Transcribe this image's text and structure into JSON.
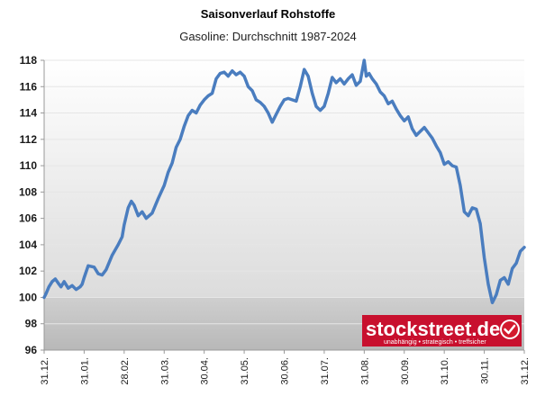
{
  "title": "Saisonverlauf Rohstoffe",
  "subtitle": "Gasoline: Durchschnitt 1987-2024",
  "logo": {
    "name": "stockstreet.de",
    "tagline": "unabhängig • strategisch • treffsicher",
    "color": "#c8102e"
  },
  "chart_data": {
    "type": "line",
    "title": "Saisonverlauf Rohstoffe",
    "subtitle": "Gasoline: Durchschnitt 1987-2024",
    "xlabel": "",
    "ylabel": "",
    "ylim": [
      96,
      118
    ],
    "yticks": [
      96,
      98,
      100,
      102,
      104,
      106,
      108,
      110,
      112,
      114,
      116,
      118
    ],
    "xtick_labels": [
      "31.12.",
      "31.01.",
      "28.02.",
      "31.03.",
      "30.04.",
      "31.05.",
      "30.06.",
      "31.07.",
      "31.08.",
      "30.09.",
      "31.10.",
      "30.11.",
      "31.12."
    ],
    "grid": true,
    "legend": "none",
    "series": [
      {
        "color": "#4a7dbf",
        "x": [
          0,
          0.05,
          0.12,
          0.2,
          0.28,
          0.35,
          0.42,
          0.5,
          0.6,
          0.7,
          0.8,
          0.9,
          0.95,
          1.0,
          1.1,
          1.25,
          1.35,
          1.45,
          1.55,
          1.7,
          1.85,
          1.95,
          2.0,
          2.1,
          2.18,
          2.25,
          2.35,
          2.45,
          2.55,
          2.7,
          2.85,
          3.0,
          3.1,
          3.2,
          3.3,
          3.4,
          3.5,
          3.6,
          3.7,
          3.8,
          3.9,
          4.0,
          4.1,
          4.2,
          4.3,
          4.4,
          4.5,
          4.6,
          4.7,
          4.8,
          4.9,
          5.0,
          5.1,
          5.2,
          5.3,
          5.4,
          5.5,
          5.6,
          5.7,
          5.8,
          5.9,
          6.0,
          6.1,
          6.2,
          6.3,
          6.4,
          6.5,
          6.6,
          6.7,
          6.8,
          6.9,
          7.0,
          7.1,
          7.2,
          7.3,
          7.4,
          7.5,
          7.6,
          7.7,
          7.8,
          7.9,
          8.0,
          8.05,
          8.12,
          8.2,
          8.3,
          8.4,
          8.5,
          8.6,
          8.7,
          8.8,
          8.9,
          9.0,
          9.1,
          9.2,
          9.3,
          9.4,
          9.5,
          9.6,
          9.7,
          9.8,
          9.9,
          10.0,
          10.1,
          10.2,
          10.3,
          10.4,
          10.5,
          10.6,
          10.7,
          10.8,
          10.9,
          11.0,
          11.1,
          11.2,
          11.3,
          11.4,
          11.5,
          11.6,
          11.7,
          11.8,
          11.9,
          12.0
        ],
        "y": [
          100.0,
          100.3,
          100.8,
          101.2,
          101.4,
          101.1,
          100.8,
          101.2,
          100.7,
          100.9,
          100.6,
          100.8,
          101.0,
          101.5,
          102.4,
          102.3,
          101.8,
          101.7,
          102.1,
          103.2,
          104.0,
          104.6,
          105.5,
          106.8,
          107.3,
          107.0,
          106.2,
          106.5,
          106.0,
          106.4,
          107.5,
          108.5,
          109.5,
          110.2,
          111.4,
          112.0,
          113.0,
          113.8,
          114.2,
          114.0,
          114.6,
          115.0,
          115.3,
          115.5,
          116.6,
          117.0,
          117.1,
          116.8,
          117.2,
          116.9,
          117.1,
          116.8,
          116.0,
          115.7,
          115.0,
          114.8,
          114.5,
          114.0,
          113.3,
          113.9,
          114.5,
          115.0,
          115.1,
          115.0,
          114.9,
          116.0,
          117.3,
          116.8,
          115.5,
          114.5,
          114.2,
          114.5,
          115.5,
          116.7,
          116.3,
          116.6,
          116.2,
          116.6,
          116.9,
          116.1,
          116.4,
          118.0,
          116.8,
          117.0,
          116.6,
          116.2,
          115.6,
          115.3,
          114.7,
          114.9,
          114.3,
          113.8,
          113.4,
          113.7,
          112.8,
          112.3,
          112.6,
          112.9,
          112.5,
          112.1,
          111.5,
          111.0,
          110.1,
          110.3,
          110.0,
          109.9,
          108.5,
          106.5,
          106.2,
          106.8,
          106.7,
          105.6,
          103.0,
          101.0,
          99.6,
          100.2,
          101.3,
          101.5,
          101.0,
          102.2,
          102.6,
          103.5,
          103.8
        ]
      }
    ]
  }
}
